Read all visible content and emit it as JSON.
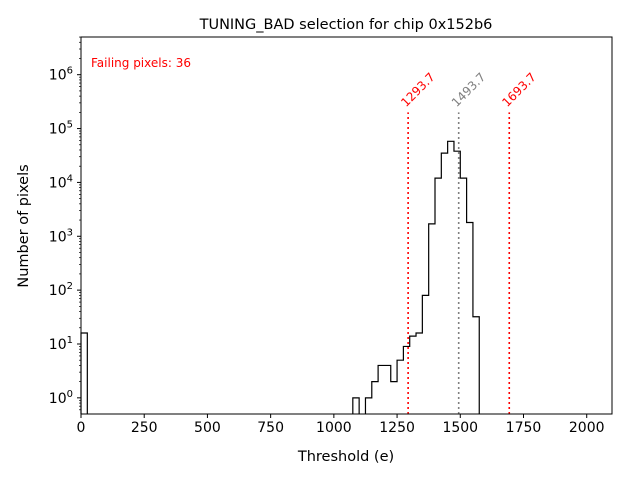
{
  "chart_data": {
    "type": "histogram",
    "title": "TUNING_BAD selection for chip 0x152b6",
    "xlabel": "Threshold (e)",
    "ylabel": "Number of pixels",
    "xlim": [
      0,
      2100
    ],
    "ylim_log10": [
      -0.3,
      6.7
    ],
    "yscale": "log",
    "bin_width": 25,
    "x_ticks": [
      0,
      250,
      500,
      750,
      1000,
      1250,
      1500,
      1750,
      2000
    ],
    "x_tick_labels": [
      "0",
      "250",
      "500",
      "750",
      "1000",
      "1250",
      "1500",
      "1750",
      "2000"
    ],
    "y_tick_exponents": [
      0,
      1,
      2,
      3,
      4,
      5,
      6
    ],
    "y_tick_base": "10",
    "bins": [
      {
        "x": 0,
        "count": 16
      },
      {
        "x": 1075,
        "count": 1
      },
      {
        "x": 1125,
        "count": 1
      },
      {
        "x": 1150,
        "count": 2
      },
      {
        "x": 1175,
        "count": 4
      },
      {
        "x": 1200,
        "count": 4
      },
      {
        "x": 1225,
        "count": 2
      },
      {
        "x": 1250,
        "count": 5
      },
      {
        "x": 1275,
        "count": 9
      },
      {
        "x": 1300,
        "count": 14
      },
      {
        "x": 1325,
        "count": 16
      },
      {
        "x": 1350,
        "count": 80
      },
      {
        "x": 1375,
        "count": 1700
      },
      {
        "x": 1400,
        "count": 12000
      },
      {
        "x": 1425,
        "count": 35000
      },
      {
        "x": 1450,
        "count": 58000
      },
      {
        "x": 1475,
        "count": 38000
      },
      {
        "x": 1500,
        "count": 12000
      },
      {
        "x": 1525,
        "count": 1800
      },
      {
        "x": 1550,
        "count": 32
      }
    ],
    "vlines": [
      {
        "x": 1293.7,
        "label": "1293.7",
        "color": "#ff0000"
      },
      {
        "x": 1493.7,
        "label": "1493.7",
        "color": "#808080"
      },
      {
        "x": 1693.7,
        "label": "1693.7",
        "color": "#ff0000"
      }
    ],
    "vline_top_count": 200000,
    "annotation": {
      "text": "Failing pixels: 36",
      "color": "#ff0000",
      "placement": "top-left"
    }
  }
}
